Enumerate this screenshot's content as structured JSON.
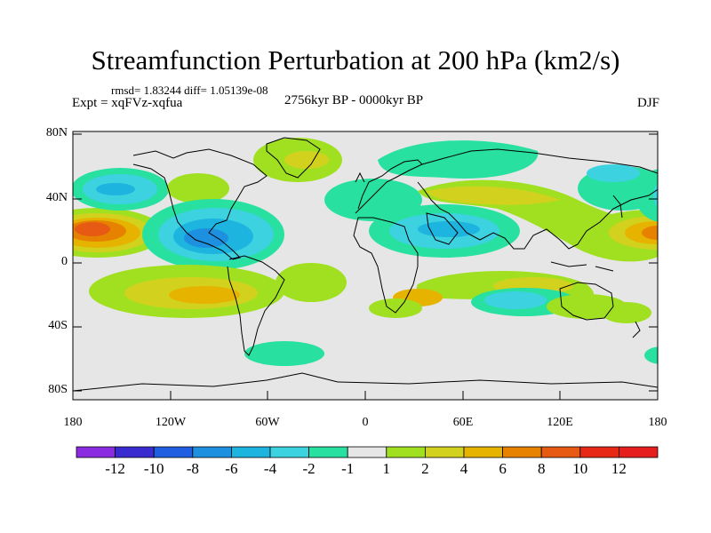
{
  "title": "Streamfunction Perturbation at 200 hPa (km2/s)",
  "stats": "rmsd= 1.83244 diff= 1.05139e-08",
  "left_subtitle": "Expt = xqFVz-xqfua",
  "center_subtitle": "2756kyr BP - 0000kyr BP",
  "right_subtitle": "DJF",
  "axes": {
    "y_ticks": [
      "80N",
      "40N",
      "0",
      "40S",
      "80S"
    ],
    "x_ticks": [
      "180",
      "120W",
      "60W",
      "0",
      "60E",
      "120E",
      "180"
    ]
  },
  "colorbar": {
    "labels": [
      "-12",
      "-10",
      "-8",
      "-6",
      "-4",
      "-2",
      "-1",
      "1",
      "2",
      "4",
      "6",
      "8",
      "10",
      "12"
    ],
    "colors": [
      "#8a2be2",
      "#3a2bd0",
      "#1f5ee0",
      "#1e90e0",
      "#1eb4e0",
      "#3cd2e0",
      "#28e0a0",
      "#e6e6e6",
      "#a0e020",
      "#d2d21e",
      "#e6b400",
      "#e68200",
      "#e65a14",
      "#e62814",
      "#e61e1e"
    ]
  },
  "map": {
    "background": "#e6e6e6",
    "coastline": "#000000"
  }
}
